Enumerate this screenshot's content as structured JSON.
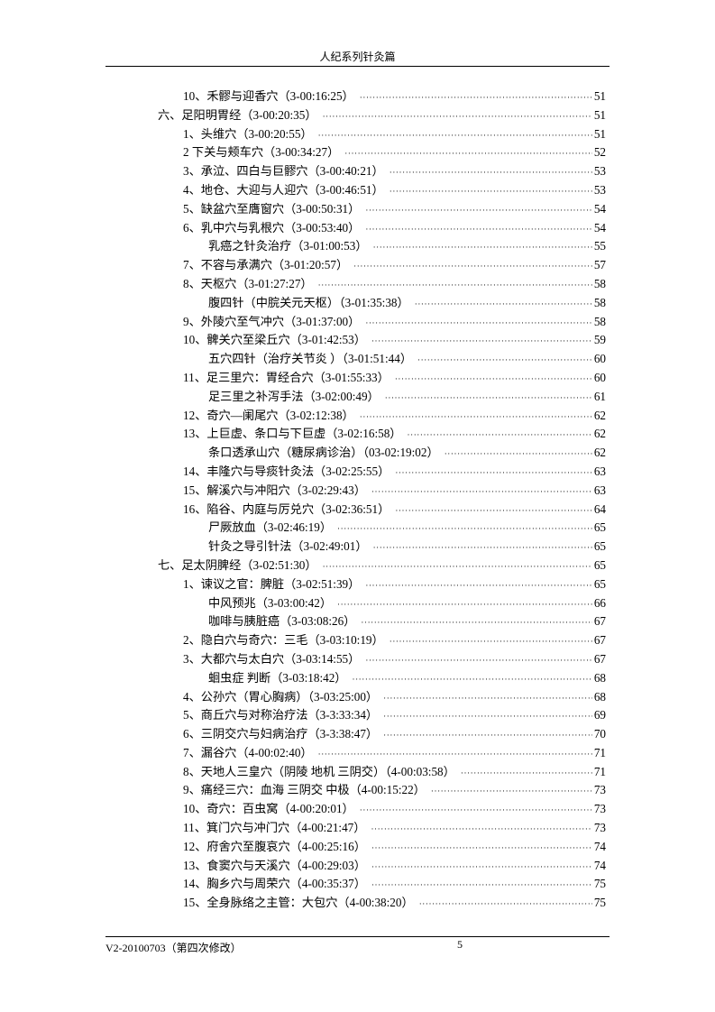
{
  "header": {
    "title": "人纪系列针灸篇"
  },
  "toc": [
    {
      "level": 1,
      "title": "10、禾髎与迎香穴（3-00:16:25）",
      "page": "51"
    },
    {
      "level": 0,
      "title": "六、足阳明胃经（3-00:20:35）",
      "page": "51"
    },
    {
      "level": 1,
      "title": "1、头维穴（3-00:20:55）",
      "page": "51"
    },
    {
      "level": 1,
      "title": "2 下关与颊车穴（3-00:34:27）",
      "page": "52"
    },
    {
      "level": 1,
      "title": "3、承泣、四白与巨髎穴（3-00:40:21）",
      "page": "53"
    },
    {
      "level": 1,
      "title": "4、地仓、大迎与人迎穴（3-00:46:51）",
      "page": "53"
    },
    {
      "level": 1,
      "title": "5、缺盆穴至膺窗穴（3-00:50:31）",
      "page": "54"
    },
    {
      "level": 1,
      "title": "6、乳中穴与乳根穴（3-00:53:40）",
      "page": "54"
    },
    {
      "level": 2,
      "title": "乳癌之针灸治疗（3-01:00:53）",
      "page": "55"
    },
    {
      "level": 1,
      "title": "7、不容与承满穴（3-01:20:57）",
      "page": "57"
    },
    {
      "level": 1,
      "title": "8、天枢穴（3-01:27:27）",
      "page": "58"
    },
    {
      "level": 2,
      "title": "腹四针（中脘关元天枢）（3-01:35:38）",
      "page": "58"
    },
    {
      "level": 1,
      "title": "9、外陵穴至气冲穴（3-01:37:00）",
      "page": "58"
    },
    {
      "level": 1,
      "title": "10、髀关穴至梁丘穴（3-01:42:53）",
      "page": "59"
    },
    {
      "level": 2,
      "title": "五穴四针（治疗关节炎 ）（3-01:51:44）",
      "page": "60"
    },
    {
      "level": 1,
      "title": "11、足三里穴：胃经合穴（3-01:55:33）",
      "page": "60"
    },
    {
      "level": 2,
      "title": "足三里之补泻手法（3-02:00:49）",
      "page": "61"
    },
    {
      "level": 1,
      "title": "12、奇穴—阑尾穴（3-02:12:38）",
      "page": "62"
    },
    {
      "level": 1,
      "title": "13、上巨虚、条口与下巨虚（3-02:16:58）",
      "page": "62"
    },
    {
      "level": 2,
      "title": "条口透承山穴（糖尿病诊治）（03-02:19:02）",
      "page": "62"
    },
    {
      "level": 1,
      "title": "14、丰隆穴与导痰针灸法（3-02:25:55）",
      "page": "63"
    },
    {
      "level": 1,
      "title": "15、解溪穴与冲阳穴（3-02:29:43）",
      "page": "63"
    },
    {
      "level": 1,
      "title": "16、陷谷、内庭与厉兑穴（3-02:36:51）",
      "page": "64"
    },
    {
      "level": 2,
      "title": "尸厥放血（3-02:46:19）",
      "page": "65"
    },
    {
      "level": 2,
      "title": "针灸之导引针法（3-02:49:01）",
      "page": "65"
    },
    {
      "level": 0,
      "title": "七、足太阴脾经（3-02:51:30）",
      "page": "65"
    },
    {
      "level": 1,
      "title": "1、谏议之官：脾脏（3-02:51:39）",
      "page": "65"
    },
    {
      "level": 2,
      "title": "中风预兆（3-03:00:42）",
      "page": "66"
    },
    {
      "level": 2,
      "title": "咖啡与胰脏癌（3-03:08:26）",
      "page": "67"
    },
    {
      "level": 1,
      "title": "2、隐白穴与奇穴：三毛（3-03:10:19）",
      "page": "67"
    },
    {
      "level": 1,
      "title": "3、大都穴与太白穴（3-03:14:55）",
      "page": "67"
    },
    {
      "level": 2,
      "title": "蛔虫症 判断（3-03:18:42）",
      "page": "68"
    },
    {
      "level": 1,
      "title": "4、公孙穴（胃心胸病）（3-03:25:00）",
      "page": "68"
    },
    {
      "level": 1,
      "title": "5、商丘穴与对称治疗法（3-3:33:34）",
      "page": "69"
    },
    {
      "level": 1,
      "title": "6、三阴交穴与妇病治疗（3-3:38:47）",
      "page": "70"
    },
    {
      "level": 1,
      "title": "7、漏谷穴（4-00:02:40）",
      "page": "71"
    },
    {
      "level": 1,
      "title": "8、天地人三皇穴（阴陵 地机 三阴交）（4-00:03:58）",
      "page": "71"
    },
    {
      "level": 1,
      "title": "9、痛经三穴：血海 三阴交 中极（4-00:15:22）",
      "page": "73"
    },
    {
      "level": 1,
      "title": "10、奇穴：百虫窝（4-00:20:01）",
      "page": "73"
    },
    {
      "level": 1,
      "title": "11、箕门穴与冲门穴（4-00:21:47）",
      "page": "73"
    },
    {
      "level": 1,
      "title": "12、府舍穴至腹哀穴（4-00:25:16）",
      "page": "74"
    },
    {
      "level": 1,
      "title": "13、食窦穴与天溪穴（4-00:29:03）",
      "page": "74"
    },
    {
      "level": 1,
      "title": "14、胸乡穴与周荣穴（4-00:35:37）",
      "page": "75"
    },
    {
      "level": 1,
      "title": "15、全身脉络之主管：大包穴（4-00:38:20）",
      "page": "75"
    }
  ],
  "footer": {
    "version": "V2-20100703（第四次修改）",
    "page_number": "5"
  }
}
